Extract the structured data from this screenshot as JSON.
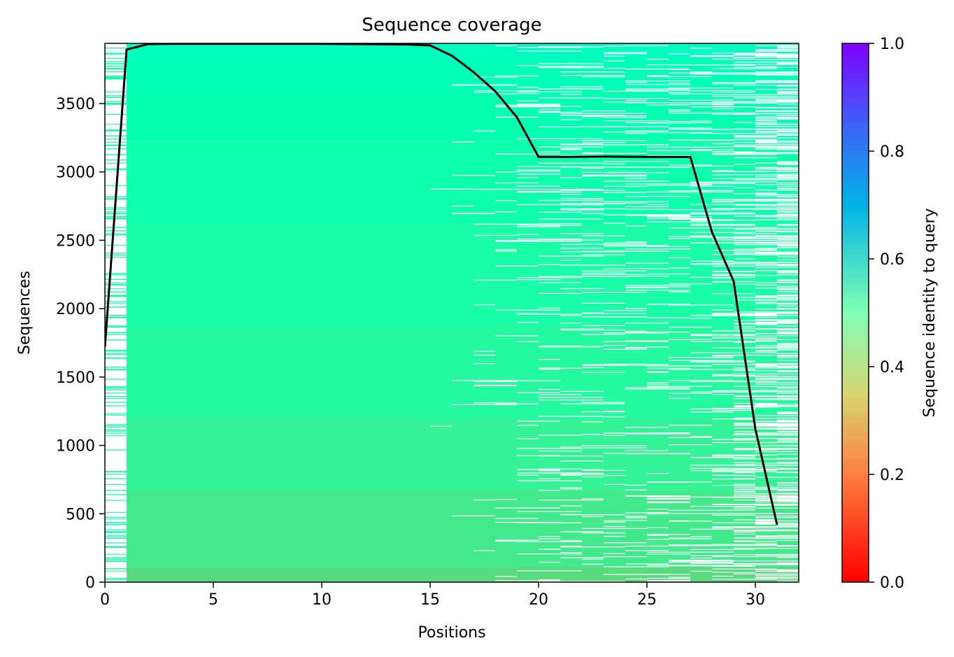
{
  "chart_data": {
    "type": "heatmap",
    "title": "Sequence coverage",
    "xlabel": "Positions",
    "ylabel": "Sequences",
    "colorbar_label": "Sequence identity to query",
    "colormap": "rainbow_r",
    "xlim": [
      0,
      32
    ],
    "ylim": [
      0,
      3940
    ],
    "clim": [
      0,
      1
    ],
    "x_ticks": [
      0,
      5,
      10,
      15,
      20,
      25,
      30
    ],
    "y_ticks": [
      0,
      500,
      1000,
      1500,
      2000,
      2500,
      3000,
      3500
    ],
    "colorbar_ticks": [
      0.0,
      0.2,
      0.4,
      0.6,
      0.8,
      1.0
    ],
    "x_tick_labels": [
      "0",
      "5",
      "10",
      "15",
      "20",
      "25",
      "30"
    ],
    "y_tick_labels": [
      "0",
      "500",
      "1000",
      "1500",
      "2000",
      "2500",
      "3000",
      "3500"
    ],
    "colorbar_tick_labels": [
      "0.0",
      "0.2",
      "0.4",
      "0.6",
      "0.8",
      "1.0"
    ],
    "identity_bands": [
      {
        "y0": 0,
        "y1": 110,
        "identity": 0.33
      },
      {
        "y0": 110,
        "y1": 670,
        "identity": 0.37
      },
      {
        "y0": 670,
        "y1": 1190,
        "identity": 0.4
      },
      {
        "y0": 1190,
        "y1": 1870,
        "identity": 0.43
      },
      {
        "y0": 1870,
        "y1": 2620,
        "identity": 0.45
      },
      {
        "y0": 2620,
        "y1": 3230,
        "identity": 0.47
      },
      {
        "y0": 3230,
        "y1": 3600,
        "identity": 0.49
      },
      {
        "y0": 3600,
        "y1": 3820,
        "identity": 0.51
      },
      {
        "y0": 3820,
        "y1": 3940,
        "identity": 0.54
      }
    ],
    "coverage_series": {
      "x": [
        0,
        1,
        2,
        3,
        5,
        10,
        14,
        15,
        16,
        17,
        18,
        19,
        20,
        21,
        23,
        25,
        27,
        28,
        29,
        30,
        31
      ],
      "y": [
        1720,
        3895,
        3935,
        3937,
        3937,
        3937,
        3932,
        3925,
        3850,
        3730,
        3590,
        3400,
        3110,
        3110,
        3112,
        3110,
        3110,
        2560,
        2200,
        1120,
        420
      ]
    }
  }
}
